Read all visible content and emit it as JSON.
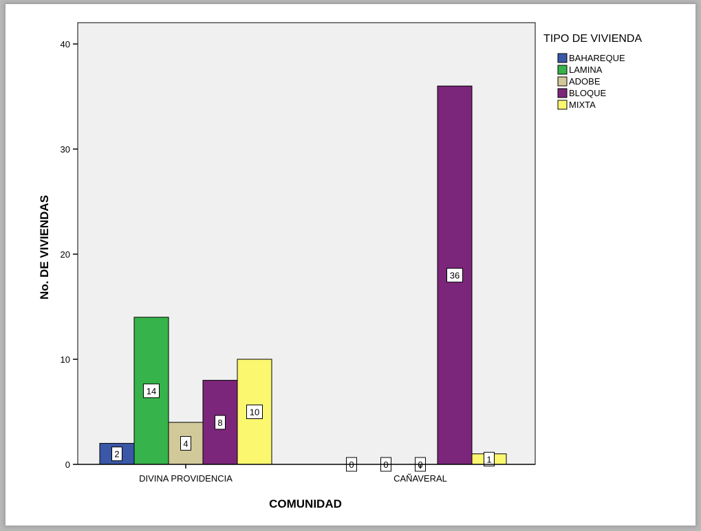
{
  "chart_data": {
    "type": "bar",
    "categories": [
      "DIVINA PROVIDENCIA",
      "CAÑAVERAL"
    ],
    "series": [
      {
        "name": "BAHAREQUE",
        "values": [
          2,
          0
        ],
        "color": "#3a57a8"
      },
      {
        "name": "LAMINA",
        "values": [
          14,
          0
        ],
        "color": "#36b34a"
      },
      {
        "name": "ADOBE",
        "values": [
          4,
          0
        ],
        "color": "#d2c99a"
      },
      {
        "name": "BLOQUE",
        "values": [
          8,
          36
        ],
        "color": "#7b267a"
      },
      {
        "name": "MIXTA",
        "values": [
          10,
          1
        ],
        "color": "#fbf870"
      }
    ],
    "xlabel": "COMUNIDAD",
    "ylabel": "No. DE VIVIENDAS",
    "ylim": [
      0,
      42
    ],
    "yticks": [
      0,
      10,
      20,
      30,
      40
    ],
    "legend_title": "TIPO DE VIVIENDA",
    "legend_position": "top-right",
    "plot_background": "#f0f0f0",
    "grid": false
  }
}
